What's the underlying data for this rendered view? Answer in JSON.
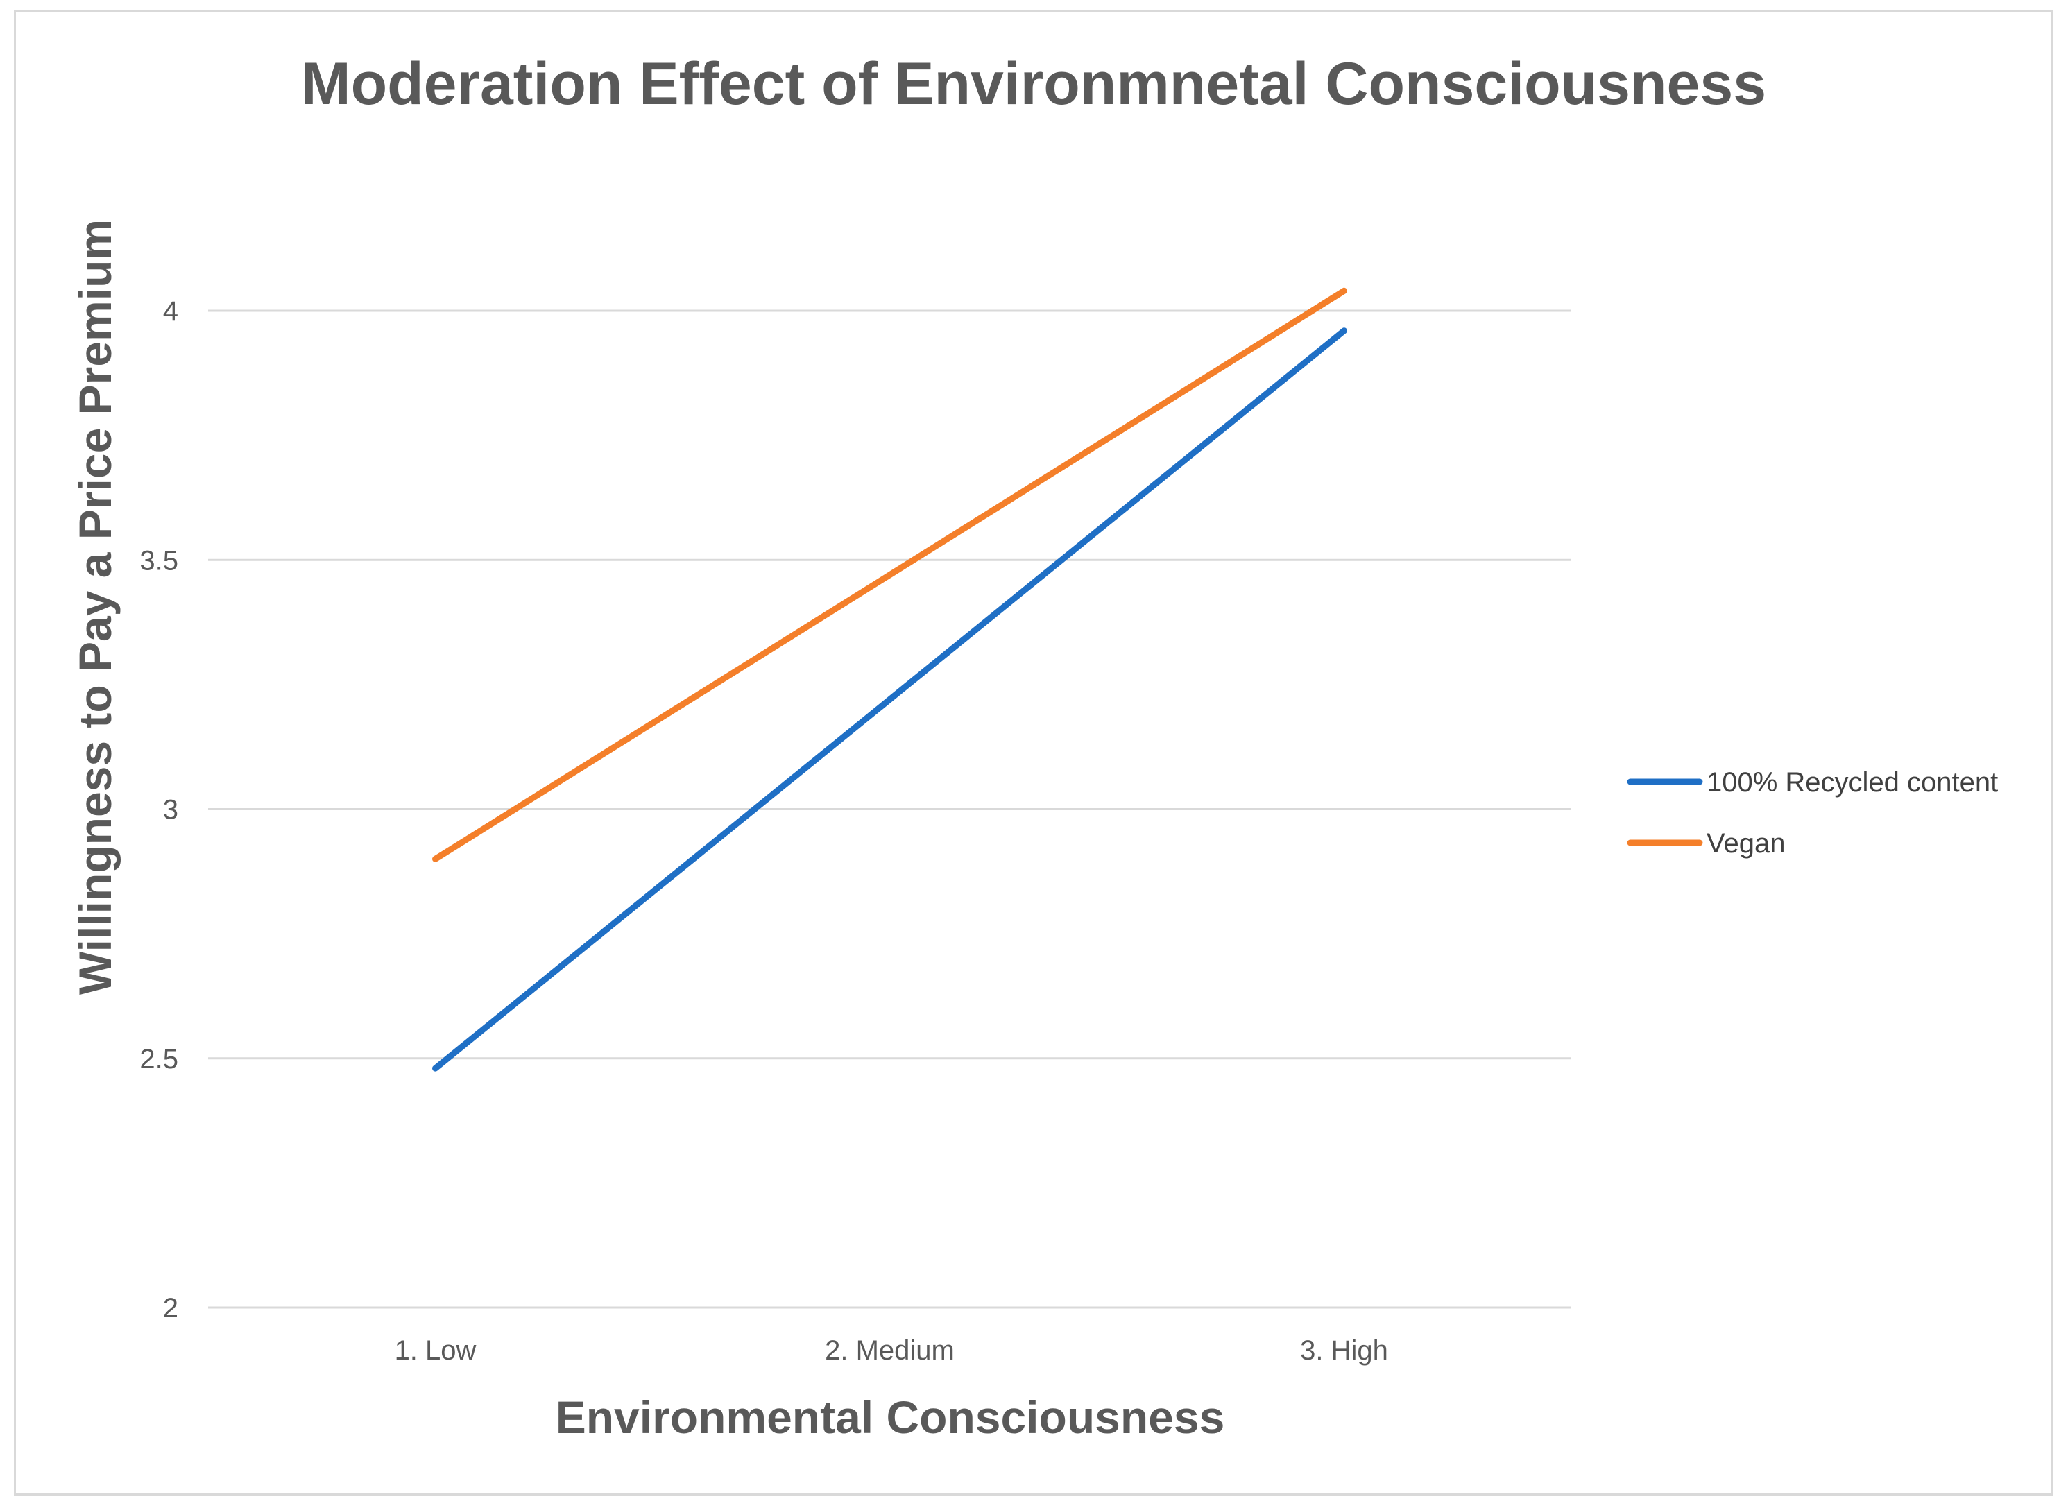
{
  "chart_data": {
    "type": "line",
    "title": "Moderation Effect of Environmnetal Consciousness",
    "xlabel": "Environmental Consciousness",
    "ylabel": "Willingness to Pay a Price Premium",
    "categories": [
      "1. Low",
      "2. Medium",
      "3. High"
    ],
    "ylim": [
      2,
      4
    ],
    "yticks": [
      2,
      2.5,
      3,
      3.5,
      4
    ],
    "ytick_labels": [
      "2",
      "2.5",
      "3",
      "3.5",
      "4"
    ],
    "grid": true,
    "legend_position": "right",
    "series": [
      {
        "name": "100% Recycled content",
        "color": "#1f6fc5",
        "values": [
          2.48,
          3.22,
          3.96
        ]
      },
      {
        "name": "Vegan",
        "color": "#f47f2a",
        "values": [
          2.9,
          3.47,
          4.04
        ]
      }
    ]
  }
}
